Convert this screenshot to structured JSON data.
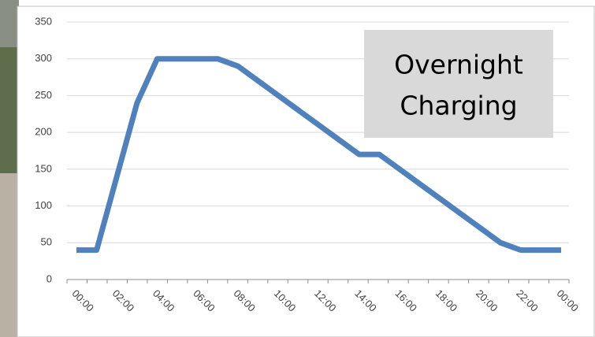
{
  "chart_data": {
    "type": "line",
    "annotation": [
      "Overnight",
      "Charging"
    ],
    "categories": [
      "00:00",
      null,
      "02:00",
      null,
      "04:00",
      null,
      "06:00",
      null,
      "08:00",
      null,
      "10:00",
      null,
      "12:00",
      null,
      "14:00",
      null,
      "16:00",
      null,
      "18:00",
      null,
      "20:00",
      null,
      "22:00",
      null,
      "00:00"
    ],
    "values": [
      40,
      40,
      140,
      240,
      300,
      300,
      300,
      300,
      290,
      270,
      250,
      230,
      210,
      190,
      170,
      170,
      150,
      130,
      110,
      90,
      70,
      50,
      40,
      40,
      40
    ],
    "color": "#4f81bd",
    "ylim": [
      0,
      350
    ],
    "yticks": [
      0,
      50,
      100,
      150,
      200,
      250,
      300,
      350
    ],
    "grid": true
  }
}
